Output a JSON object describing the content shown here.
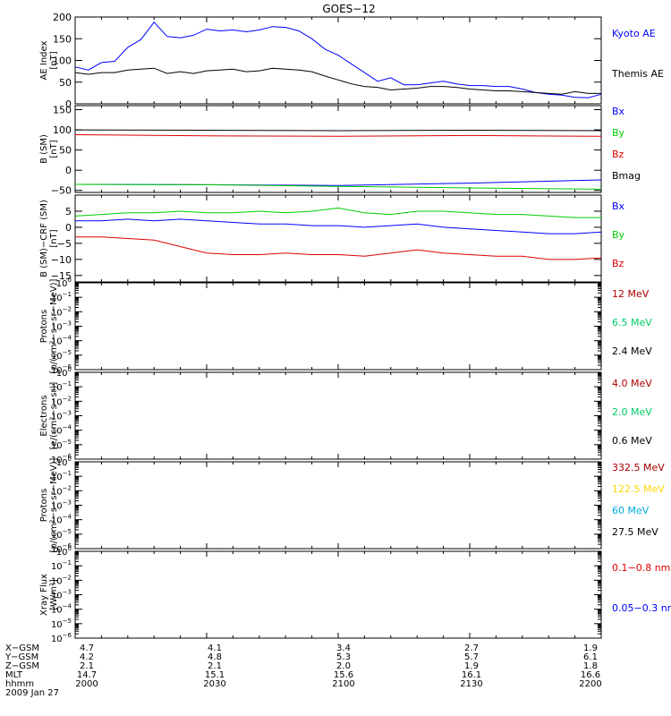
{
  "page": {
    "title": "GOES−12"
  },
  "chart_data": [
    {
      "type": "line",
      "panel": "ae",
      "ylabel_lines": [
        "AE Index",
        "[nT]"
      ],
      "ylim": [
        0,
        200
      ],
      "yticks": [
        0,
        50,
        100,
        150,
        200
      ],
      "x_range": [
        0,
        120
      ],
      "series": [
        {
          "name": "Kyoto AE",
          "color": "#0000ff",
          "x": [
            0,
            3,
            6,
            9,
            12,
            15,
            18,
            21,
            24,
            27,
            30,
            33,
            36,
            39,
            42,
            45,
            48,
            51,
            54,
            57,
            60,
            63,
            66,
            69,
            72,
            75,
            78,
            81,
            84,
            87,
            90,
            93,
            96,
            99,
            102,
            105,
            108,
            111,
            114,
            117,
            120
          ],
          "y": [
            85,
            78,
            95,
            98,
            130,
            148,
            188,
            155,
            152,
            158,
            172,
            168,
            170,
            166,
            170,
            178,
            176,
            168,
            150,
            126,
            112,
            92,
            72,
            52,
            60,
            44,
            44,
            48,
            52,
            46,
            42,
            42,
            40,
            40,
            34,
            26,
            22,
            20,
            15,
            14,
            22
          ]
        },
        {
          "name": "Themis AE",
          "color": "#000000",
          "x": [
            0,
            3,
            6,
            9,
            12,
            15,
            18,
            21,
            24,
            27,
            30,
            33,
            36,
            39,
            42,
            45,
            48,
            51,
            54,
            57,
            60,
            63,
            66,
            69,
            72,
            75,
            78,
            81,
            84,
            87,
            90,
            93,
            96,
            99,
            102,
            105,
            108,
            111,
            114,
            117,
            120
          ],
          "y": [
            72,
            68,
            72,
            72,
            78,
            80,
            82,
            70,
            74,
            70,
            76,
            78,
            80,
            74,
            76,
            82,
            80,
            78,
            74,
            64,
            55,
            46,
            40,
            38,
            32,
            34,
            36,
            40,
            40,
            38,
            34,
            32,
            30,
            30,
            28,
            26,
            24,
            22,
            28,
            24,
            24
          ]
        }
      ]
    },
    {
      "type": "line",
      "panel": "bsm",
      "ylabel_lines": [
        "B (SM)",
        "[nT]"
      ],
      "ylim": [
        -55,
        160
      ],
      "yticks": [
        -50,
        0,
        50,
        100,
        150
      ],
      "x_range": [
        0,
        120
      ],
      "series": [
        {
          "name": "Bx",
          "color": "#0000ff",
          "x": [
            0,
            30,
            60,
            90,
            120
          ],
          "y": [
            -35,
            -36,
            -38,
            -32,
            -24
          ]
        },
        {
          "name": "By",
          "color": "#00cc00",
          "x": [
            0,
            30,
            60,
            90,
            120
          ],
          "y": [
            -35,
            -36,
            -40,
            -44,
            -47
          ]
        },
        {
          "name": "Bz",
          "color": "#dd0000",
          "x": [
            0,
            30,
            60,
            90,
            120
          ],
          "y": [
            88,
            85,
            84,
            86,
            84
          ]
        },
        {
          "name": "Bmag",
          "color": "#000000",
          "x": [
            0,
            30,
            60,
            90,
            120
          ],
          "y": [
            100,
            99,
            98,
            99,
            98
          ]
        }
      ]
    },
    {
      "type": "line",
      "panel": "bdiff",
      "ylabel_lines": [
        "B (SM)−CRF (SM)",
        "[nT]"
      ],
      "ylim": [
        -17,
        10
      ],
      "yticks": [
        -15,
        -10,
        -5,
        0,
        5
      ],
      "x_range": [
        0,
        120
      ],
      "series": [
        {
          "name": "Bx",
          "color": "#0000ff",
          "x": [
            0,
            6,
            12,
            18,
            24,
            30,
            36,
            42,
            48,
            54,
            60,
            66,
            72,
            78,
            84,
            90,
            96,
            102,
            108,
            114,
            120
          ],
          "y": [
            2,
            2,
            2.5,
            2,
            2.5,
            2,
            1.5,
            1,
            1,
            0.5,
            0.5,
            0,
            0.5,
            1,
            0,
            -0.5,
            -1,
            -1.5,
            -2,
            -2,
            -1.5
          ]
        },
        {
          "name": "By",
          "color": "#00cc00",
          "x": [
            0,
            6,
            12,
            18,
            24,
            30,
            36,
            42,
            48,
            54,
            60,
            66,
            72,
            78,
            84,
            90,
            96,
            102,
            108,
            114,
            120
          ],
          "y": [
            3.5,
            4,
            4.5,
            4.5,
            5,
            4.5,
            4.5,
            5,
            4.5,
            5,
            6,
            4.5,
            4,
            5,
            5,
            4.5,
            4,
            4,
            3.5,
            3,
            3
          ]
        },
        {
          "name": "Bz",
          "color": "#dd0000",
          "x": [
            0,
            6,
            12,
            18,
            24,
            30,
            36,
            42,
            48,
            54,
            60,
            66,
            72,
            78,
            84,
            90,
            96,
            102,
            108,
            114,
            120
          ],
          "y": [
            -3,
            -3,
            -3.5,
            -4,
            -6,
            -8,
            -8.5,
            -8.5,
            -8,
            -8.5,
            -8.5,
            -9,
            -8,
            -7,
            -8,
            -8.5,
            -9,
            -9,
            -10,
            -10,
            -9.5
          ]
        }
      ]
    },
    {
      "type": "line",
      "panel": "protons1",
      "ylabel_lines": [
        "Protons",
        "[p/(cm²−s−sr−MeV)]"
      ],
      "yscale": "log",
      "ylim_exp": [
        -6,
        0
      ],
      "series": [
        {
          "name": "12 MeV",
          "color": "#aa0000",
          "values": []
        },
        {
          "name": "6.5 MeV",
          "color": "#00cc66",
          "values": []
        },
        {
          "name": "2.4 MeV",
          "color": "#000000",
          "values": []
        }
      ]
    },
    {
      "type": "line",
      "panel": "electrons",
      "ylabel_lines": [
        "Electrons",
        "[e/(cm²−s−sr)]"
      ],
      "yscale": "log",
      "ylim_exp": [
        -6,
        0
      ],
      "series": [
        {
          "name": "4.0 MeV",
          "color": "#aa0000",
          "values": []
        },
        {
          "name": "2.0 MeV",
          "color": "#00cc66",
          "values": []
        },
        {
          "name": "0.6 MeV",
          "color": "#000000",
          "values": []
        }
      ]
    },
    {
      "type": "line",
      "panel": "protons2",
      "ylabel_lines": [
        "Protons",
        "[p/(cm²−s−sr−MeV)]"
      ],
      "yscale": "log",
      "ylim_exp": [
        -6,
        0
      ],
      "series": [
        {
          "name": "332.5 MeV",
          "color": "#aa0000",
          "values": []
        },
        {
          "name": "122.5 MeV",
          "color": "#ffd700",
          "values": []
        },
        {
          "name": "60 MeV",
          "color": "#00aadd",
          "values": []
        },
        {
          "name": "27.5 MeV",
          "color": "#000000",
          "values": []
        }
      ]
    },
    {
      "type": "line",
      "panel": "xray",
      "ylabel_lines": [
        "Xray Flux",
        "[W/m²]"
      ],
      "yscale": "log",
      "ylim_exp": [
        -6,
        0
      ],
      "series": [
        {
          "name": "0.1−0.8 nm",
          "color": "#dd0000",
          "values": []
        },
        {
          "name": "0.05−0.3 nm",
          "color": "#0000ff",
          "values": []
        }
      ]
    }
  ],
  "x_axis": {
    "row_labels": [
      "X−GSM",
      "Y−GSM",
      "Z−GSM",
      "MLT",
      "hhmm"
    ],
    "columns": [
      [
        "4.7",
        "4.2",
        "2.1",
        "14.7",
        "2000"
      ],
      [
        "4.1",
        "4.8",
        "2.1",
        "15.1",
        "2030"
      ],
      [
        "3.4",
        "5.3",
        "2.0",
        "15.6",
        "2100"
      ],
      [
        "2.7",
        "5.7",
        "1.9",
        "16.1",
        "2130"
      ],
      [
        "1.9",
        "6.1",
        "1.8",
        "16.6",
        "2200"
      ]
    ],
    "date": "2009 Jan 27"
  }
}
